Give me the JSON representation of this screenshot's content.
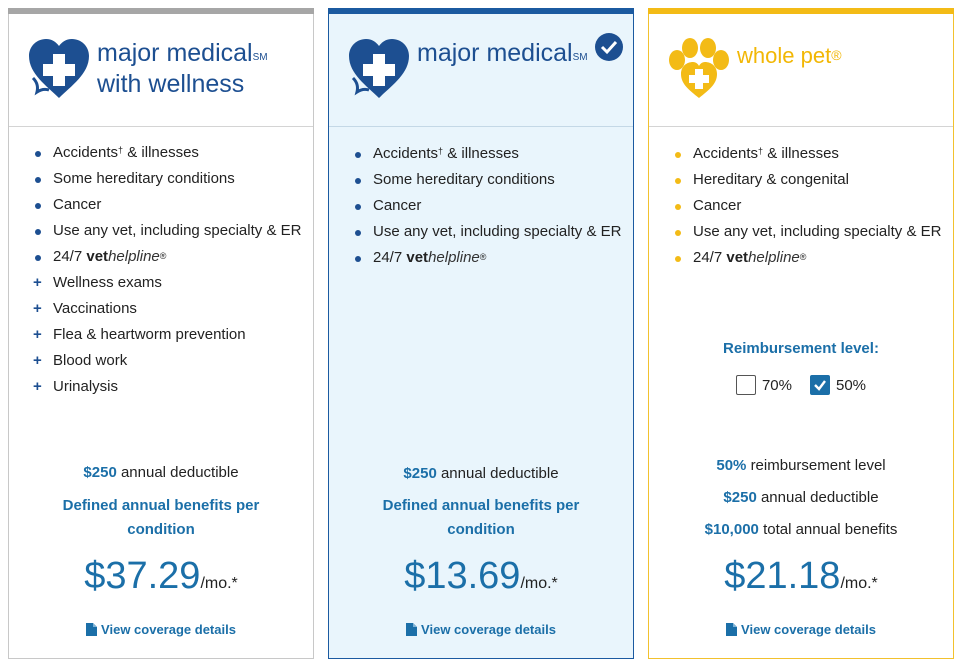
{
  "plans": [
    {
      "name_line1": "major medical",
      "name_sup": "SM",
      "name_line2": "with wellness",
      "features": [
        {
          "text": "Accidents",
          "dagger": "†",
          "rest": " & illnesses",
          "type": "bullet"
        },
        {
          "text": "Some hereditary conditions",
          "type": "bullet"
        },
        {
          "text": "Cancer",
          "type": "bullet"
        },
        {
          "text": "Use any vet, including specialty & ER",
          "type": "bullet"
        },
        {
          "vh_prefix": "24/7 ",
          "vh_bold": "vet",
          "vh_italic": "helpline",
          "vh_reg": "®",
          "type": "bullet"
        },
        {
          "text": "Wellness exams",
          "type": "plus"
        },
        {
          "text": "Vaccinations",
          "type": "plus"
        },
        {
          "text": "Flea & heartworm prevention",
          "type": "plus"
        },
        {
          "text": "Blood work",
          "type": "plus"
        },
        {
          "text": "Urinalysis",
          "type": "plus"
        }
      ],
      "deductible_amount": "$250",
      "deductible_label": "annual deductible",
      "benefit_text": "Defined annual benefits per condition",
      "price": "$37.29",
      "per": "/mo.*",
      "details_label": "View coverage details"
    },
    {
      "name_line1": "major medical",
      "name_sup": "SM",
      "selected": true,
      "features": [
        {
          "text": "Accidents",
          "dagger": "†",
          "rest": " & illnesses",
          "type": "bullet"
        },
        {
          "text": "Some hereditary conditions",
          "type": "bullet"
        },
        {
          "text": "Cancer",
          "type": "bullet"
        },
        {
          "text": "Use any vet, including specialty & ER",
          "type": "bullet"
        },
        {
          "vh_prefix": "24/7 ",
          "vh_bold": "vet",
          "vh_italic": "helpline",
          "vh_reg": "®",
          "type": "bullet"
        }
      ],
      "deductible_amount": "$250",
      "deductible_label": "annual deductible",
      "benefit_text": "Defined annual benefits per condition",
      "price": "$13.69",
      "per": "/mo.*",
      "details_label": "View coverage details"
    },
    {
      "name_line1": "whole pet",
      "name_sup": "®",
      "features": [
        {
          "text": "Accidents",
          "dagger": "†",
          "rest": " & illnesses",
          "type": "bullet"
        },
        {
          "text": "Hereditary & congenital",
          "type": "bullet"
        },
        {
          "text": "Cancer",
          "type": "bullet"
        },
        {
          "text": "Use any vet, including specialty & ER",
          "type": "bullet"
        },
        {
          "vh_prefix": "24/7 ",
          "vh_bold": "vet",
          "vh_italic": "helpline",
          "vh_reg": "®",
          "type": "bullet"
        }
      ],
      "reimbursement_label": "Reimbursement level:",
      "reimbursement_options": [
        {
          "label": "70%",
          "checked": false
        },
        {
          "label": "50%",
          "checked": true
        }
      ],
      "reimb_pct": "50%",
      "reimb_pct_label": "reimbursement level",
      "deductible_amount": "$250",
      "deductible_label": "annual deductible",
      "total_benefit_amount": "$10,000",
      "total_benefit_label": "total annual benefits",
      "price": "$21.18",
      "per": "/mo.*",
      "details_label": "View coverage details"
    }
  ],
  "colors": {
    "navy": "#1d4f91",
    "link_blue": "#1b6fa8",
    "gold": "#f3bb16",
    "selected_bg": "#e9f5fc"
  },
  "icons": {
    "medical_logo": "heart-cross-icon",
    "wholepet_logo": "paw-cross-icon",
    "selected": "check-circle-icon",
    "details": "document-icon"
  }
}
